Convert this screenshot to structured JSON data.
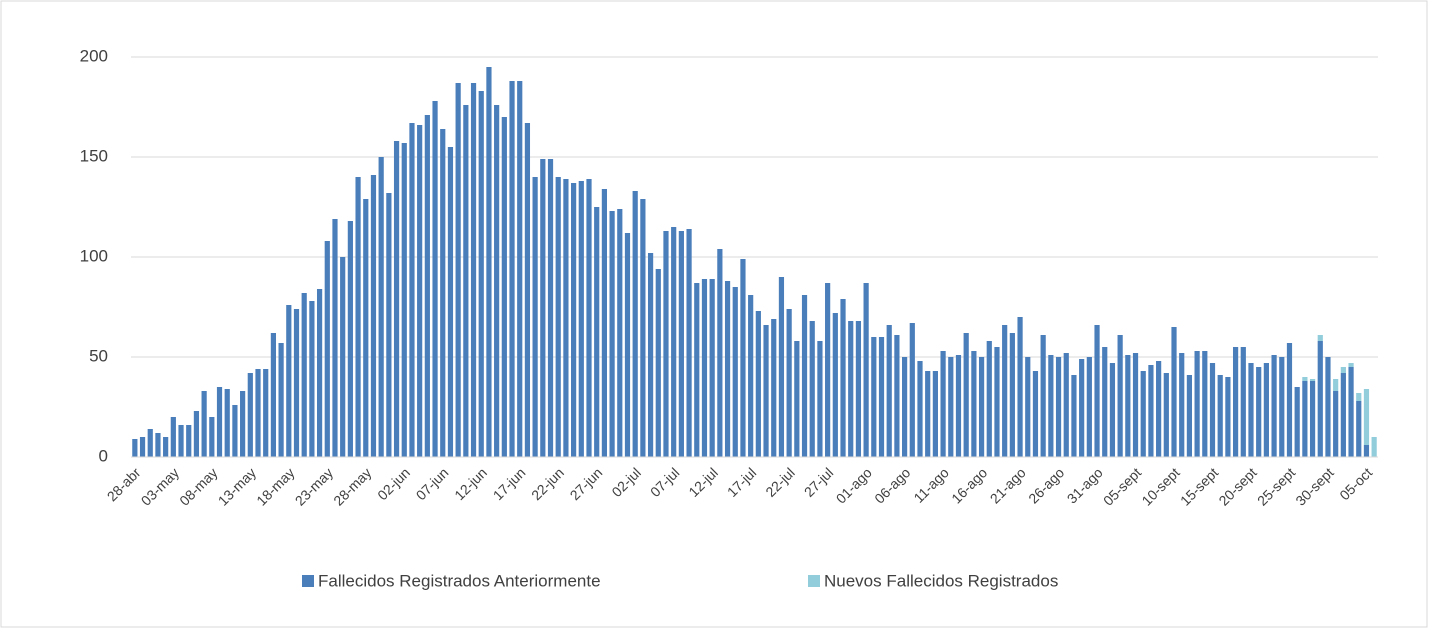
{
  "chart_data": {
    "type": "stacked-bar",
    "categories": [
      "28-abr",
      null,
      null,
      null,
      null,
      "03-may",
      null,
      null,
      null,
      null,
      "08-may",
      null,
      null,
      null,
      null,
      "13-may",
      null,
      null,
      null,
      null,
      "18-may",
      null,
      null,
      null,
      null,
      "23-may",
      null,
      null,
      null,
      null,
      "28-may",
      null,
      null,
      null,
      null,
      "02-jun",
      null,
      null,
      null,
      null,
      "07-jun",
      null,
      null,
      null,
      null,
      "12-jun",
      null,
      null,
      null,
      null,
      "17-jun",
      null,
      null,
      null,
      null,
      "22-jun",
      null,
      null,
      null,
      null,
      "27-jun",
      null,
      null,
      null,
      null,
      "02-jul",
      null,
      null,
      null,
      null,
      "07-jul",
      null,
      null,
      null,
      null,
      "12-jul",
      null,
      null,
      null,
      null,
      "17-jul",
      null,
      null,
      null,
      null,
      "22-jul",
      null,
      null,
      null,
      null,
      "27-jul",
      null,
      null,
      null,
      null,
      "01-ago",
      null,
      null,
      null,
      null,
      "06-ago",
      null,
      null,
      null,
      null,
      "11-ago",
      null,
      null,
      null,
      null,
      "16-ago",
      null,
      null,
      null,
      null,
      "21-ago",
      null,
      null,
      null,
      null,
      "26-ago",
      null,
      null,
      null,
      null,
      "31-ago",
      null,
      null,
      null,
      null,
      "05-sept",
      null,
      null,
      null,
      null,
      "10-sept",
      null,
      null,
      null,
      null,
      "15-sept",
      null,
      null,
      null,
      null,
      "20-sept",
      null,
      null,
      null,
      null,
      "25-sept",
      null,
      null,
      null,
      null,
      "30-sept",
      null,
      null,
      null,
      null,
      "05-oct",
      null
    ],
    "series": [
      {
        "name": "Fallecidos Registrados Anteriormente",
        "color": "#4a7ebb",
        "values": [
          9,
          10,
          14,
          12,
          10,
          20,
          16,
          16,
          23,
          33,
          20,
          35,
          34,
          26,
          33,
          42,
          44,
          44,
          62,
          57,
          76,
          74,
          82,
          78,
          84,
          108,
          119,
          100,
          118,
          140,
          129,
          141,
          150,
          132,
          158,
          157,
          167,
          166,
          171,
          178,
          164,
          155,
          187,
          176,
          187,
          183,
          195,
          176,
          170,
          188,
          188,
          167,
          140,
          149,
          149,
          140,
          139,
          137,
          138,
          139,
          125,
          134,
          123,
          124,
          112,
          133,
          129,
          102,
          94,
          113,
          115,
          113,
          114,
          87,
          89,
          89,
          104,
          88,
          85,
          99,
          81,
          73,
          66,
          69,
          90,
          74,
          58,
          81,
          68,
          58,
          87,
          72,
          79,
          68,
          68,
          87,
          60,
          60,
          66,
          61,
          50,
          67,
          48,
          43,
          43,
          53,
          50,
          51,
          62,
          53,
          50,
          58,
          55,
          66,
          62,
          70,
          50,
          43,
          61,
          51,
          50,
          52,
          41,
          49,
          50,
          66,
          55,
          47,
          61,
          51,
          52,
          43,
          46,
          48,
          42,
          65,
          52,
          41,
          53,
          53,
          47,
          41,
          40,
          55,
          55,
          47,
          45,
          47,
          51,
          50,
          57,
          35,
          38,
          38,
          58,
          50,
          33,
          42,
          45,
          28,
          6,
          0
        ]
      },
      {
        "name": "Nuevos Fallecidos Registrados",
        "color": "#92cddc",
        "values": [
          0,
          0,
          0,
          0,
          0,
          0,
          0,
          0,
          0,
          0,
          0,
          0,
          0,
          0,
          0,
          0,
          0,
          0,
          0,
          0,
          0,
          0,
          0,
          0,
          0,
          0,
          0,
          0,
          0,
          0,
          0,
          0,
          0,
          0,
          0,
          0,
          0,
          0,
          0,
          0,
          0,
          0,
          0,
          0,
          0,
          0,
          0,
          0,
          0,
          0,
          0,
          0,
          0,
          0,
          0,
          0,
          0,
          0,
          0,
          0,
          0,
          0,
          0,
          0,
          0,
          0,
          0,
          0,
          0,
          0,
          0,
          0,
          0,
          0,
          0,
          0,
          0,
          0,
          0,
          0,
          0,
          0,
          0,
          0,
          0,
          0,
          0,
          0,
          0,
          0,
          0,
          0,
          0,
          0,
          0,
          0,
          0,
          0,
          0,
          0,
          0,
          0,
          0,
          0,
          0,
          0,
          0,
          0,
          0,
          0,
          0,
          0,
          0,
          0,
          0,
          0,
          0,
          0,
          0,
          0,
          0,
          0,
          0,
          0,
          0,
          0,
          0,
          0,
          0,
          0,
          0,
          0,
          0,
          0,
          0,
          0,
          0,
          0,
          0,
          0,
          0,
          0,
          0,
          0,
          0,
          0,
          0,
          0,
          0,
          0,
          0,
          0,
          2,
          1,
          3,
          0,
          6,
          3,
          2,
          4,
          28,
          10
        ]
      }
    ],
    "ylim": [
      0,
      200
    ],
    "yticks": [
      0,
      50,
      100,
      150,
      200
    ],
    "grid": true,
    "legend": "bottom"
  }
}
